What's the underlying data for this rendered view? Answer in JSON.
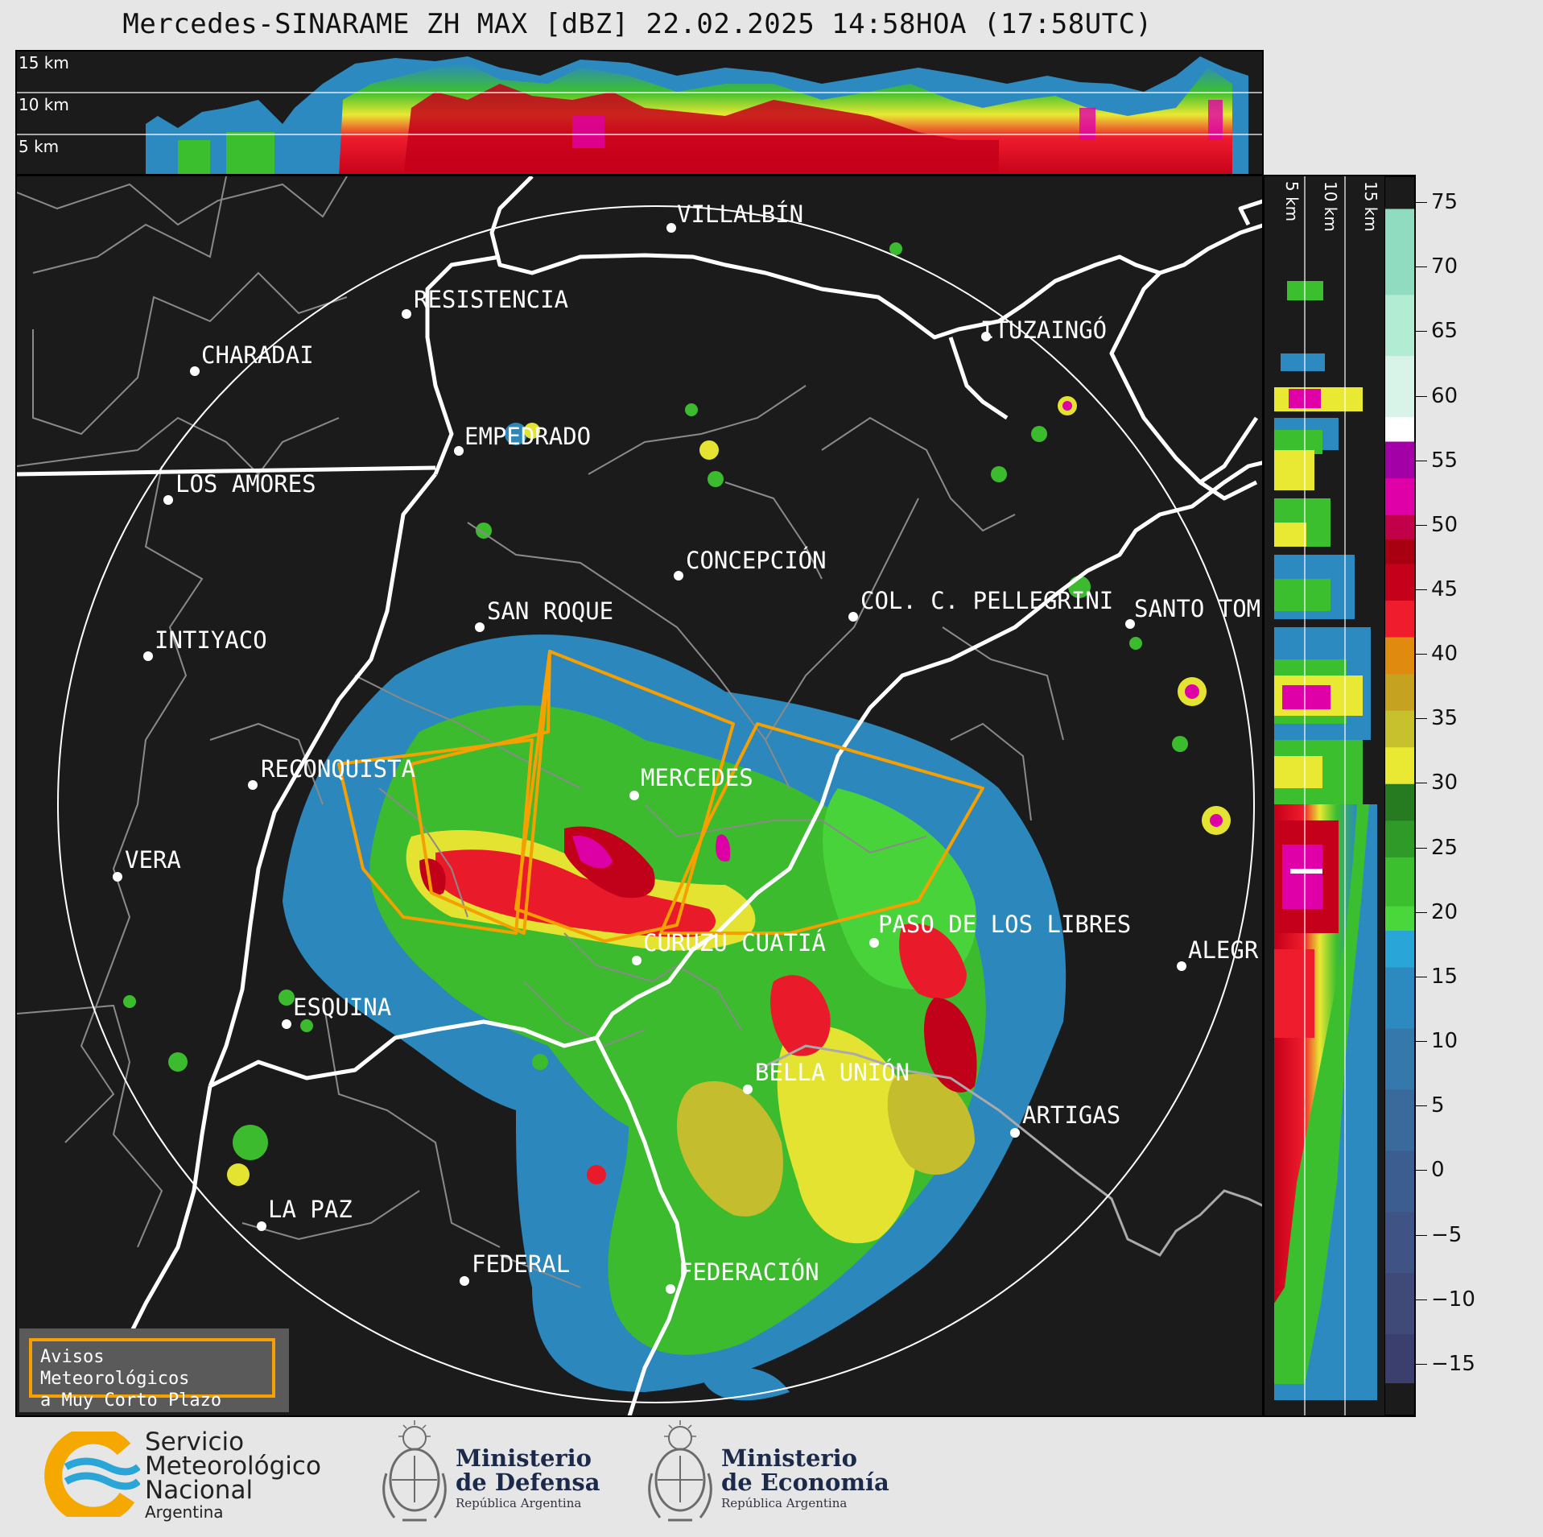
{
  "title": "Mercedes-SINARAME ZH MAX [dBZ] 22.02.2025 14:58HOA (17:58UTC)",
  "top_profile": {
    "height_labels": [
      "15 km",
      "10 km",
      "5 km"
    ]
  },
  "side_profile": {
    "height_labels": [
      "5 km",
      "10 km",
      "15 km"
    ]
  },
  "colorbar": {
    "unit": "dBZ",
    "ticks": [
      "75",
      "70",
      "65",
      "60",
      "55",
      "50",
      "45",
      "40",
      "35",
      "30",
      "25",
      "20",
      "15",
      "10",
      "5",
      "0",
      "−5",
      "−10",
      "−15"
    ],
    "tick_values": [
      75,
      70,
      65,
      60,
      55,
      50,
      45,
      40,
      35,
      30,
      25,
      20,
      15,
      10,
      5,
      0,
      -5,
      -10,
      -15
    ],
    "range": [
      -19,
      77
    ],
    "segments": [
      {
        "from": -19,
        "to": -15,
        "color": "#3b3f6e"
      },
      {
        "from": -15,
        "to": -10,
        "color": "#404a78"
      },
      {
        "from": -10,
        "to": -5,
        "color": "#3f5384"
      },
      {
        "from": -5,
        "to": 0,
        "color": "#3c5d8f"
      },
      {
        "from": 0,
        "to": 5,
        "color": "#3a6a9c"
      },
      {
        "from": 5,
        "to": 10,
        "color": "#3478ac"
      },
      {
        "from": 10,
        "to": 15,
        "color": "#2d8ac0"
      },
      {
        "from": 15,
        "to": 18,
        "color": "#29a5d8"
      },
      {
        "from": 18,
        "to": 20,
        "color": "#4ad73b"
      },
      {
        "from": 20,
        "to": 24,
        "color": "#3cbf2e"
      },
      {
        "from": 24,
        "to": 27,
        "color": "#2f9a27"
      },
      {
        "from": 27,
        "to": 30,
        "color": "#267a20"
      },
      {
        "from": 30,
        "to": 33,
        "color": "#e9e832"
      },
      {
        "from": 33,
        "to": 36,
        "color": "#c8c12e"
      },
      {
        "from": 36,
        "to": 39,
        "color": "#c5a21f"
      },
      {
        "from": 39,
        "to": 42,
        "color": "#e08a10"
      },
      {
        "from": 42,
        "to": 45,
        "color": "#ee1c2c"
      },
      {
        "from": 45,
        "to": 48,
        "color": "#c5001a"
      },
      {
        "from": 48,
        "to": 50,
        "color": "#a80010"
      },
      {
        "from": 50,
        "to": 52,
        "color": "#c2004a"
      },
      {
        "from": 52,
        "to": 55,
        "color": "#e000a8"
      },
      {
        "from": 55,
        "to": 58,
        "color": "#a400a8"
      },
      {
        "from": 58,
        "to": 60,
        "color": "#ffffff"
      },
      {
        "from": 60,
        "to": 65,
        "color": "#d8f4e8"
      },
      {
        "from": 65,
        "to": 70,
        "color": "#b2ecd2"
      },
      {
        "from": 70,
        "to": 77,
        "color": "#8fdcc0"
      }
    ]
  },
  "cities": [
    {
      "name": "VILLALBÍN"
    },
    {
      "name": "RESISTENCIA"
    },
    {
      "name": "CHARADAI"
    },
    {
      "name": "ITUZAINGÓ"
    },
    {
      "name": "EMPEDRADO"
    },
    {
      "name": "LOS AMORES"
    },
    {
      "name": "CONCEPCIÓN"
    },
    {
      "name": "SAN ROQUE"
    },
    {
      "name": "COL. C. PELLEGRINI"
    },
    {
      "name": "SANTO TOM"
    },
    {
      "name": "INTIYACO"
    },
    {
      "name": "RECONQUISTA"
    },
    {
      "name": "MERCEDES"
    },
    {
      "name": "VERA"
    },
    {
      "name": "PASO DE LOS LIBRES"
    },
    {
      "name": "CURUZÚ CUATIÁ"
    },
    {
      "name": "ALEGR"
    },
    {
      "name": "ESQUINA"
    },
    {
      "name": "BELLA UNIÓN"
    },
    {
      "name": "ARTIGAS"
    },
    {
      "name": "LA PAZ"
    },
    {
      "name": "FEDERAL"
    },
    {
      "name": "FEDERACIÓN"
    }
  ],
  "legend_box": {
    "line1": "Avisos Meteorológicos",
    "line2": "a Muy Corto Plazo"
  },
  "logos": {
    "smn": {
      "line1": "Servicio",
      "line2": "Meteorológico",
      "line3": "Nacional",
      "line4": "Argentina"
    },
    "defensa": {
      "line1": "Ministerio",
      "line2": "de Defensa",
      "line3": "República Argentina"
    },
    "economia": {
      "line1": "Ministerio",
      "line2": "de Economía",
      "line3": "República Argentina"
    }
  },
  "colors": {
    "warning_polygon": "#f5a000",
    "background": "#1b1b1b",
    "page": "#e6e6e6"
  }
}
